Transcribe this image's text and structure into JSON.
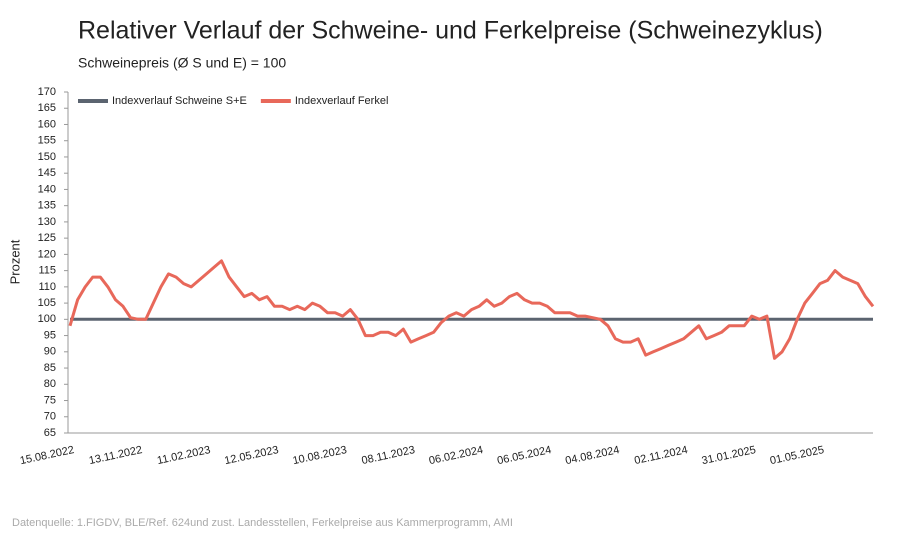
{
  "chart_data": {
    "type": "line",
    "title": "Relativer Verlauf der Schweine- und Ferkelpreise (Schweinezyklus)",
    "subtitle": "Schweinepreis (Ø S und E) = 100",
    "y_label": "Prozent",
    "source": "Datenquelle: 1.FIGDV, BLE/Ref. 624und zust. Landesstellen, Ferkelpreise aus Kammerprogramm, AMI",
    "legend": "top-left",
    "categories": [
      "15.08.2022",
      null,
      null,
      null,
      null,
      null,
      null,
      null,
      null,
      "13.11.2022",
      null,
      null,
      null,
      null,
      null,
      null,
      null,
      null,
      "11.02.2023",
      null,
      null,
      null,
      null,
      null,
      null,
      null,
      null,
      "12.05.2023",
      null,
      null,
      null,
      null,
      null,
      null,
      null,
      null,
      "10.08.2023",
      null,
      null,
      null,
      null,
      null,
      null,
      null,
      null,
      "08.11.2023",
      null,
      null,
      null,
      null,
      null,
      null,
      null,
      null,
      "06.02.2024",
      null,
      null,
      null,
      null,
      null,
      null,
      null,
      null,
      "06.05.2024",
      null,
      null,
      null,
      null,
      null,
      null,
      null,
      null,
      "04.08.2024",
      null,
      null,
      null,
      null,
      null,
      null,
      null,
      null,
      "02.11.2024",
      null,
      null,
      null,
      null,
      null,
      null,
      null,
      null,
      "31.01.2025",
      null,
      null,
      null,
      null,
      null,
      null,
      null,
      null,
      "01.05.2025",
      null,
      null,
      null,
      null,
      null,
      null,
      null
    ],
    "series": [
      {
        "name": "Indexverlauf Schweine S+E",
        "color": "#5b6470",
        "values": [
          100,
          100,
          100,
          100,
          100,
          100,
          100,
          100,
          100,
          100,
          100,
          100,
          100,
          100,
          100,
          100,
          100,
          100,
          100,
          100,
          100,
          100,
          100,
          100,
          100,
          100,
          100,
          100,
          100,
          100,
          100,
          100,
          100,
          100,
          100,
          100,
          100,
          100,
          100,
          100,
          100,
          100,
          100,
          100,
          100,
          100,
          100,
          100,
          100,
          100,
          100,
          100,
          100,
          100,
          100,
          100,
          100,
          100,
          100,
          100,
          100,
          100,
          100,
          100,
          100,
          100,
          100,
          100,
          100,
          100,
          100,
          100,
          100,
          100,
          100,
          100,
          100,
          100,
          100,
          100,
          100,
          100,
          100,
          100,
          100,
          100,
          100,
          100,
          100,
          100,
          100,
          100,
          100,
          100,
          100,
          100,
          100,
          100,
          100,
          100,
          100,
          100,
          100,
          100,
          100,
          100,
          100
        ]
      },
      {
        "name": "Indexverlauf Ferkel",
        "color": "#e8685a",
        "values": [
          98,
          106,
          110,
          113,
          113,
          110,
          106,
          104,
          100.5,
          100,
          100,
          105,
          110,
          114,
          113,
          111,
          110,
          112,
          114,
          116,
          118,
          113,
          110,
          107,
          108,
          106,
          107,
          104,
          104,
          103,
          104,
          103,
          105,
          104,
          102,
          102,
          101,
          103,
          100,
          95,
          95,
          96,
          96,
          95,
          97,
          93,
          94,
          95,
          96,
          99,
          101,
          102,
          101,
          103,
          104,
          106,
          104,
          105,
          107,
          108,
          106,
          105,
          105,
          104,
          102,
          102,
          102,
          101,
          101,
          100.5,
          100,
          98,
          94,
          93,
          93,
          94,
          89,
          90,
          91,
          92,
          93,
          94,
          96,
          98,
          94,
          95,
          96,
          98,
          98,
          98,
          101,
          100,
          101,
          88,
          90,
          94,
          100,
          105,
          108,
          111,
          112,
          115,
          113,
          112,
          111,
          107,
          104
        ]
      }
    ],
    "ylim": [
      65,
      170
    ],
    "yticks": [
      65,
      70,
      75,
      80,
      85,
      90,
      95,
      100,
      105,
      110,
      115,
      120,
      125,
      130,
      135,
      140,
      145,
      150,
      155,
      160,
      165,
      170
    ]
  }
}
